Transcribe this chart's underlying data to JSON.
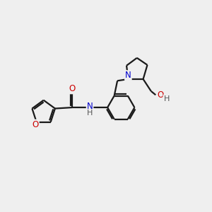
{
  "background_color": "#efefef",
  "bond_color": "#1a1a1a",
  "atom_colors": {
    "O": "#cc0000",
    "N": "#0000cc",
    "H": "#555555"
  },
  "line_width": 1.6,
  "font_size": 8.5
}
